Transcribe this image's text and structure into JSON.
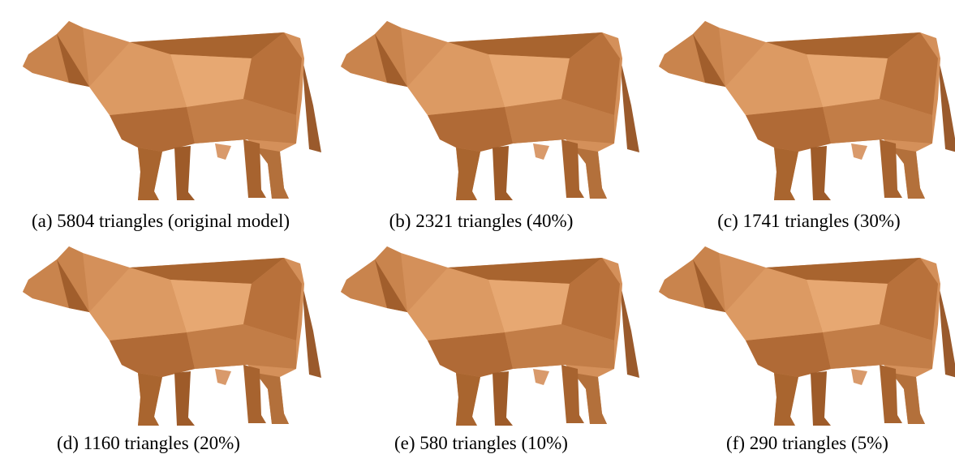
{
  "panels": [
    {
      "caption": "(a) 5804 triangles (original model)"
    },
    {
      "caption": "(b) 2321 triangles (40%)"
    },
    {
      "caption": "(c) 1741 triangles (30%)"
    },
    {
      "caption": "(d) 1160 triangles (20%)"
    },
    {
      "caption": "(e) 580 triangles (10%)"
    },
    {
      "caption": "(f) 290 triangles (5%)"
    }
  ]
}
